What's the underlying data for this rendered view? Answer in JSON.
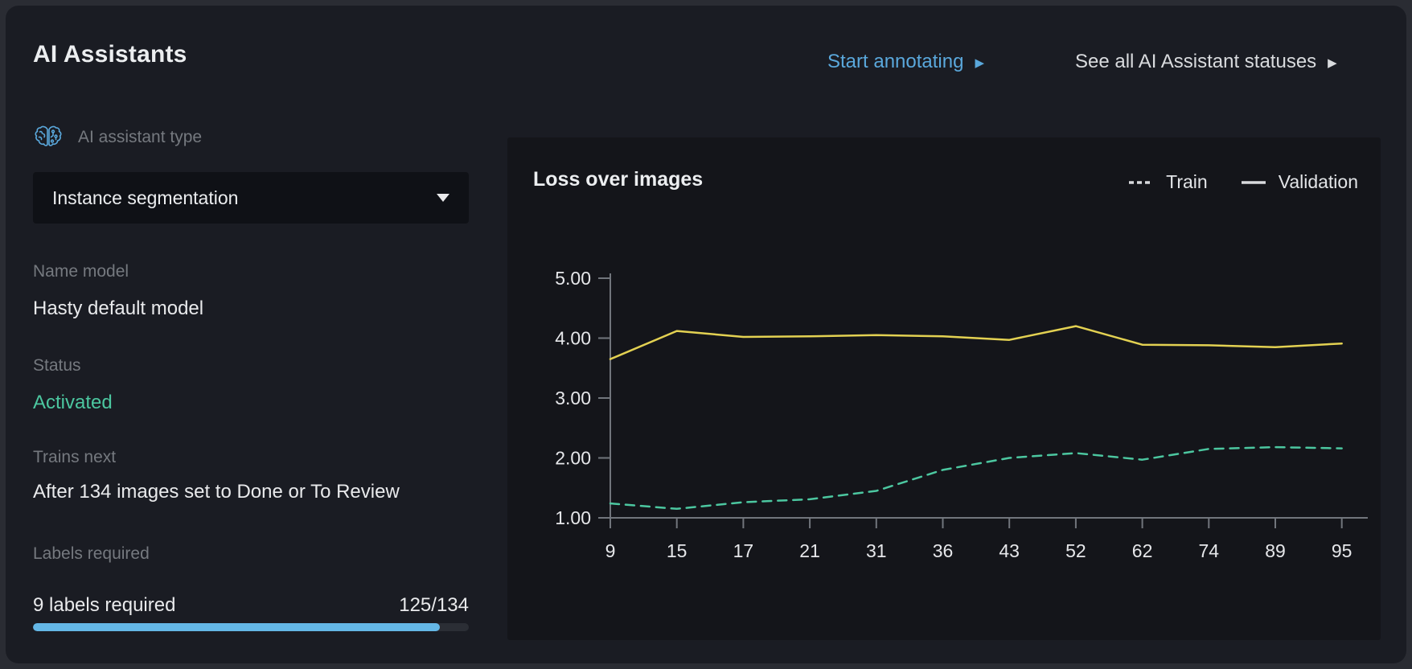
{
  "page": {
    "title": "AI Assistants"
  },
  "header": {
    "start_annotating_label": "Start annotating",
    "see_all_label": "See all AI Assistant statuses",
    "link_color": "#5aa8dc"
  },
  "assistant": {
    "type_label": "AI assistant type",
    "type_value": "Instance segmentation",
    "name_label": "Name model",
    "name_value": "Hasty default model",
    "status_label": "Status",
    "status_value": "Activated",
    "status_color": "#4cc7a0",
    "trains_label": "Trains next",
    "trains_value": "After 134 images set to Done or To Review",
    "labels_label": "Labels required",
    "labels_text": "9 labels required",
    "progress_text": "125/134",
    "progress_value": 125,
    "progress_max": 134,
    "progress_color": "#64b7e6"
  },
  "chart_data": {
    "type": "line",
    "title": "Loss over images",
    "xlabel": "",
    "ylabel": "",
    "categories": [
      9,
      15,
      17,
      21,
      31,
      36,
      43,
      52,
      62,
      74,
      89,
      95
    ],
    "series": [
      {
        "name": "Train",
        "style": "dashed",
        "color": "#4cc7a0",
        "values": [
          1.24,
          1.15,
          1.26,
          1.31,
          1.45,
          1.8,
          2.0,
          2.08,
          1.97,
          2.15,
          2.18,
          2.16
        ]
      },
      {
        "name": "Validation",
        "style": "solid",
        "color": "#e3d152",
        "values": [
          3.65,
          4.12,
          4.02,
          4.03,
          4.05,
          4.03,
          3.97,
          4.2,
          3.89,
          3.88,
          3.85,
          3.91
        ]
      }
    ],
    "ylim": [
      1,
      5
    ],
    "yticks": [
      5,
      4,
      3,
      2,
      1
    ],
    "ytick_labels": [
      "5.00",
      "4.00",
      "3.00",
      "2.00",
      "1.00"
    ],
    "grid": false,
    "legend_position": "top-right",
    "axis_color": "#71757c",
    "tick_label_color": "#e6e7ea"
  }
}
